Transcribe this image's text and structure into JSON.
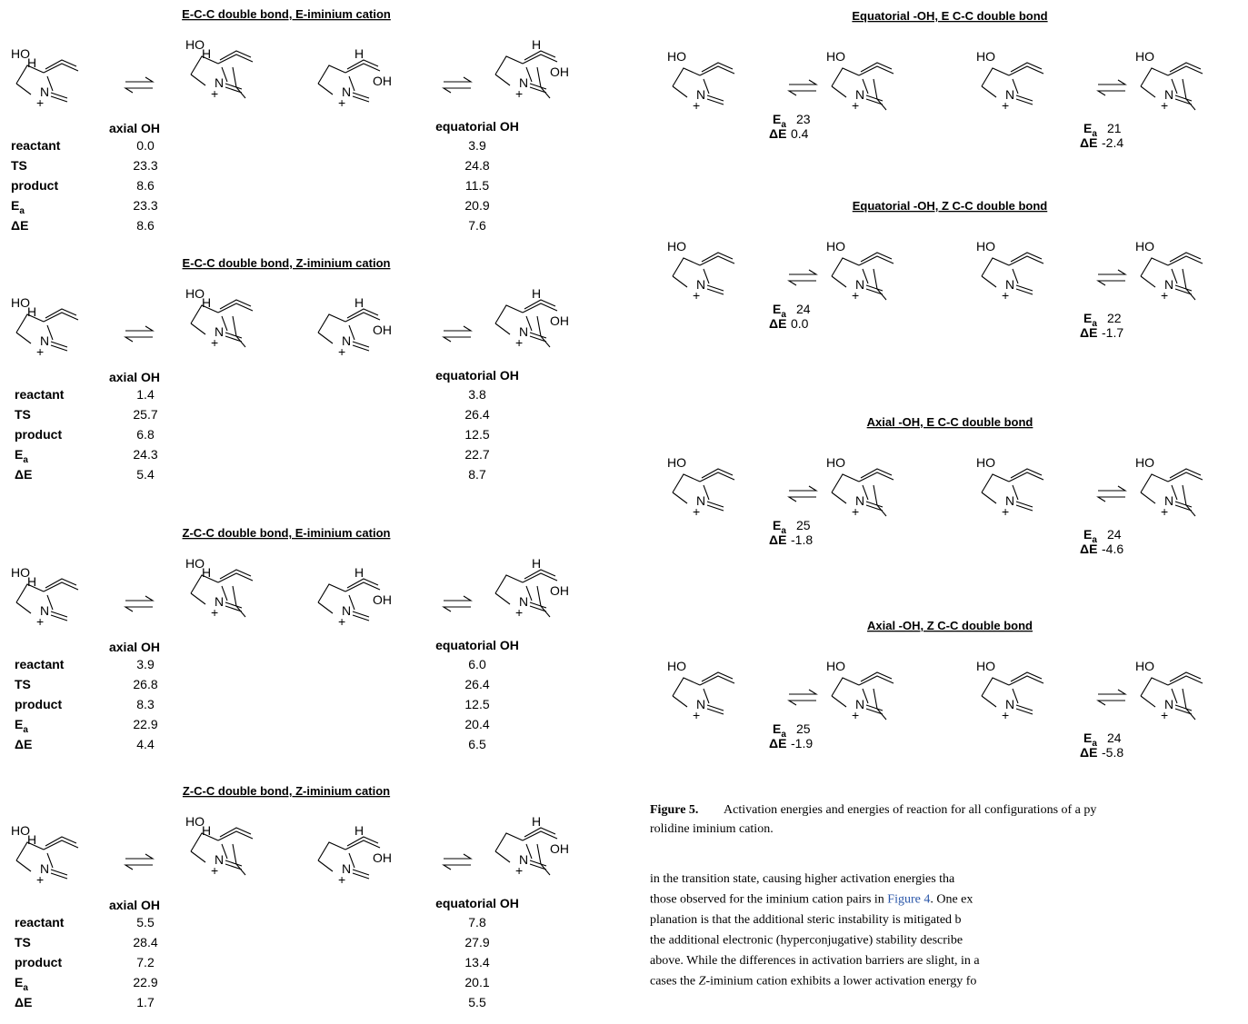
{
  "atom_labels": [
    "HO",
    "H",
    "N",
    "+",
    "OH"
  ],
  "energy_labels": [
    "E",
    "a",
    "ΔE"
  ],
  "left_panels": [
    {
      "title": "E-C-C double bond, E-iminium cation",
      "columns": [
        "axial OH",
        "equatorial OH"
      ],
      "rows": [
        {
          "label": "reactant",
          "values": [
            "0.0",
            "3.9"
          ]
        },
        {
          "label": "TS",
          "values": [
            "23.3",
            "24.8"
          ]
        },
        {
          "label": "product",
          "values": [
            "8.6",
            "11.5"
          ]
        },
        {
          "label": "E",
          "sub": "a",
          "values": [
            "23.3",
            "20.9"
          ]
        },
        {
          "label": "ΔE",
          "values": [
            "8.6",
            "7.6"
          ]
        }
      ]
    },
    {
      "title": "E-C-C double bond, Z-iminium cation",
      "columns": [
        "axial OH",
        "equatorial OH"
      ],
      "rows": [
        {
          "label": "reactant",
          "values": [
            "1.4",
            "3.8"
          ]
        },
        {
          "label": "TS",
          "values": [
            "25.7",
            "26.4"
          ]
        },
        {
          "label": "product",
          "values": [
            "6.8",
            "12.5"
          ]
        },
        {
          "label": "E",
          "sub": "a",
          "values": [
            "24.3",
            "22.7"
          ]
        },
        {
          "label": "ΔE",
          "values": [
            "5.4",
            "8.7"
          ]
        }
      ]
    },
    {
      "title": "Z-C-C double bond, E-iminium cation",
      "columns": [
        "axial OH",
        "equatorial OH"
      ],
      "rows": [
        {
          "label": "reactant",
          "values": [
            "3.9",
            "6.0"
          ]
        },
        {
          "label": "TS",
          "values": [
            "26.8",
            "26.4"
          ]
        },
        {
          "label": "product",
          "values": [
            "8.3",
            "12.5"
          ]
        },
        {
          "label": "E",
          "sub": "a",
          "values": [
            "22.9",
            "20.4"
          ]
        },
        {
          "label": "ΔE",
          "values": [
            "4.4",
            "6.5"
          ]
        }
      ]
    },
    {
      "title": "Z-C-C double bond, Z-iminium cation",
      "columns": [
        "axial OH",
        "equatorial OH"
      ],
      "rows": [
        {
          "label": "reactant",
          "values": [
            "5.5",
            "7.8"
          ]
        },
        {
          "label": "TS",
          "values": [
            "28.4",
            "27.9"
          ]
        },
        {
          "label": "product",
          "values": [
            "7.2",
            "13.4"
          ]
        },
        {
          "label": "E",
          "sub": "a",
          "values": [
            "22.9",
            "20.1"
          ]
        },
        {
          "label": "ΔE",
          "values": [
            "1.7",
            "5.5"
          ]
        }
      ]
    }
  ],
  "right_panels": [
    {
      "title": "Equatorial -OH, E C-C double bond",
      "pairs": [
        {
          "ea": "23",
          "de": "0.4"
        },
        {
          "ea": "21",
          "de": "-2.4"
        }
      ]
    },
    {
      "title": "Equatorial -OH, Z C-C double bond",
      "pairs": [
        {
          "ea": "24",
          "de": "0.0"
        },
        {
          "ea": "22",
          "de": "-1.7"
        }
      ]
    },
    {
      "title": "Axial -OH, E C-C double bond",
      "pairs": [
        {
          "ea": "25",
          "de": "-1.8"
        },
        {
          "ea": "24",
          "de": "-4.6"
        }
      ]
    },
    {
      "title": "Axial -OH, Z C-C double bond",
      "pairs": [
        {
          "ea": "25",
          "de": "-1.9"
        },
        {
          "ea": "24",
          "de": "-5.8"
        }
      ]
    }
  ],
  "caption": {
    "label": "Figure 5.",
    "lines": [
      "Activation energies and energies of reaction for all configurations of a py",
      "rolidine iminium cation."
    ]
  },
  "body": {
    "lines": [
      [
        "in the transition state, causing higher activation energies tha"
      ],
      [
        "those observed for the iminium cation pairs in ",
        "Figure 4",
        ". One ex"
      ],
      [
        "planation is that the additional steric instability is mitigated b"
      ],
      [
        "the additional electronic (hyperconjugative) stability describe"
      ],
      [
        "above. While the differences in activation barriers are slight, in a"
      ],
      [
        "cases the ",
        "Z",
        "-iminium cation exhibits a lower activation energy fo"
      ]
    ]
  }
}
